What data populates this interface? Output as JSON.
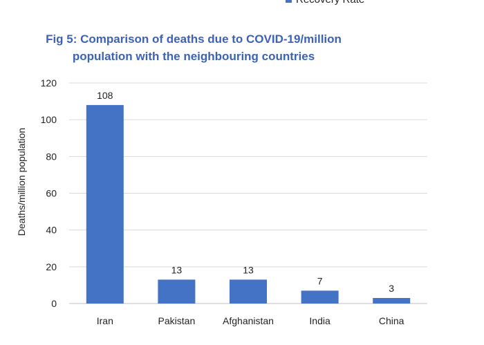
{
  "legend_fragment": {
    "label": "Recovery Rate",
    "color": "#4472C4"
  },
  "chart_data": {
    "type": "bar",
    "title": "Fig 5: Comparison of deaths due to COVID-19/million population with the neighbouring countries",
    "title_lines": [
      "Fig 5: Comparison of deaths due to COVID-19/million",
      "population with the neighbouring countries"
    ],
    "categories": [
      "Iran",
      "Pakistan",
      "Afghanistan",
      "India",
      "China"
    ],
    "values": [
      108,
      13,
      13,
      7,
      3
    ],
    "value_labels": [
      "108",
      "13",
      "13",
      "7",
      "3"
    ],
    "xlabel": "",
    "ylabel": "Deaths/million population",
    "ylim": [
      0,
      120
    ],
    "yticks": [
      0,
      20,
      40,
      60,
      80,
      100,
      120
    ],
    "ytick_labels": [
      "0",
      "20",
      "40",
      "60",
      "80",
      "100",
      "120"
    ],
    "grid": true,
    "bar_color": "#4472C4",
    "grid_color": "#D9D9D9",
    "axis_color": "#BFBFBF",
    "title_color": "#3D62B4",
    "text_color": "#222222"
  }
}
